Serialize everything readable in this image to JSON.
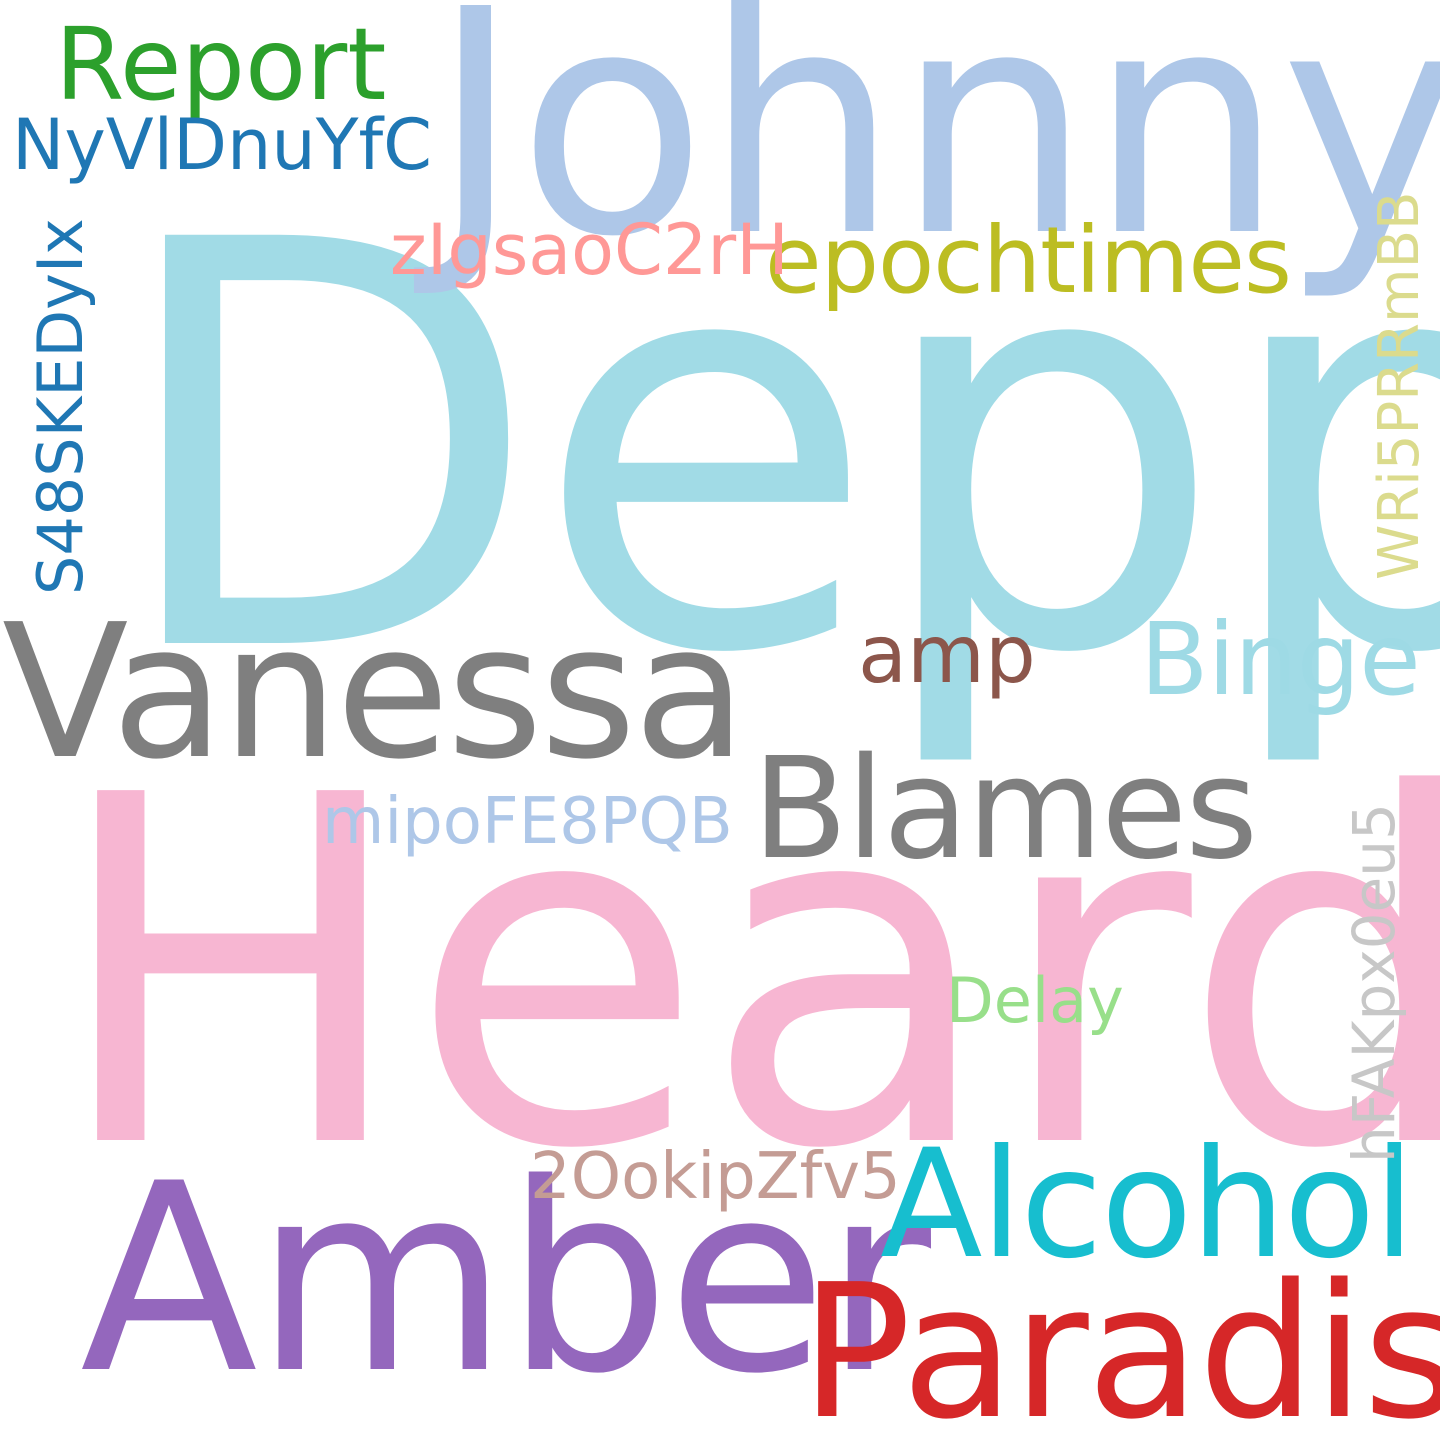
{
  "cloud": {
    "words": {
      "depp": {
        "text": "Depp",
        "color": "#a1dbe6"
      },
      "heard": {
        "text": "Heard",
        "color": "#f7b6d2"
      },
      "johnny": {
        "text": "Johnny",
        "color": "#aec7e8"
      },
      "vanessa": {
        "text": "Vanessa",
        "color": "#7f7f7f"
      },
      "amber": {
        "text": "Amber",
        "color": "#9467bd"
      },
      "alcohol": {
        "text": "Alcohol",
        "color": "#17becf"
      },
      "paradis": {
        "text": "Paradis",
        "color": "#d62728"
      },
      "blames": {
        "text": "Blames",
        "color": "#7f7f7f"
      },
      "binge": {
        "text": "Binge",
        "color": "#9edae5"
      },
      "report": {
        "text": "Report",
        "color": "#2ca02c"
      },
      "epochtimes": {
        "text": "epochtimes",
        "color": "#bcbd22"
      },
      "amp": {
        "text": "amp",
        "color": "#8c564b"
      },
      "nyvl": {
        "text": "NyVlDnuYfC",
        "color": "#1f77b4"
      },
      "zigs": {
        "text": "zIgsaoC2rH",
        "color": "#ff9896"
      },
      "mipo": {
        "text": "mipoFE8PQB",
        "color": "#aec7e8"
      },
      "delay": {
        "text": "Delay",
        "color": "#98df8a"
      },
      "ookip": {
        "text": "2OokipZfv5",
        "color": "#c49c94"
      },
      "s48": {
        "text": "S48SKEDyIx",
        "color": "#1f77b4"
      },
      "wri": {
        "text": "WRi5PRRmBB",
        "color": "#dbdb8d"
      },
      "hfak": {
        "text": "hFAKpx0eu5",
        "color": "#c7c7c7"
      }
    }
  }
}
